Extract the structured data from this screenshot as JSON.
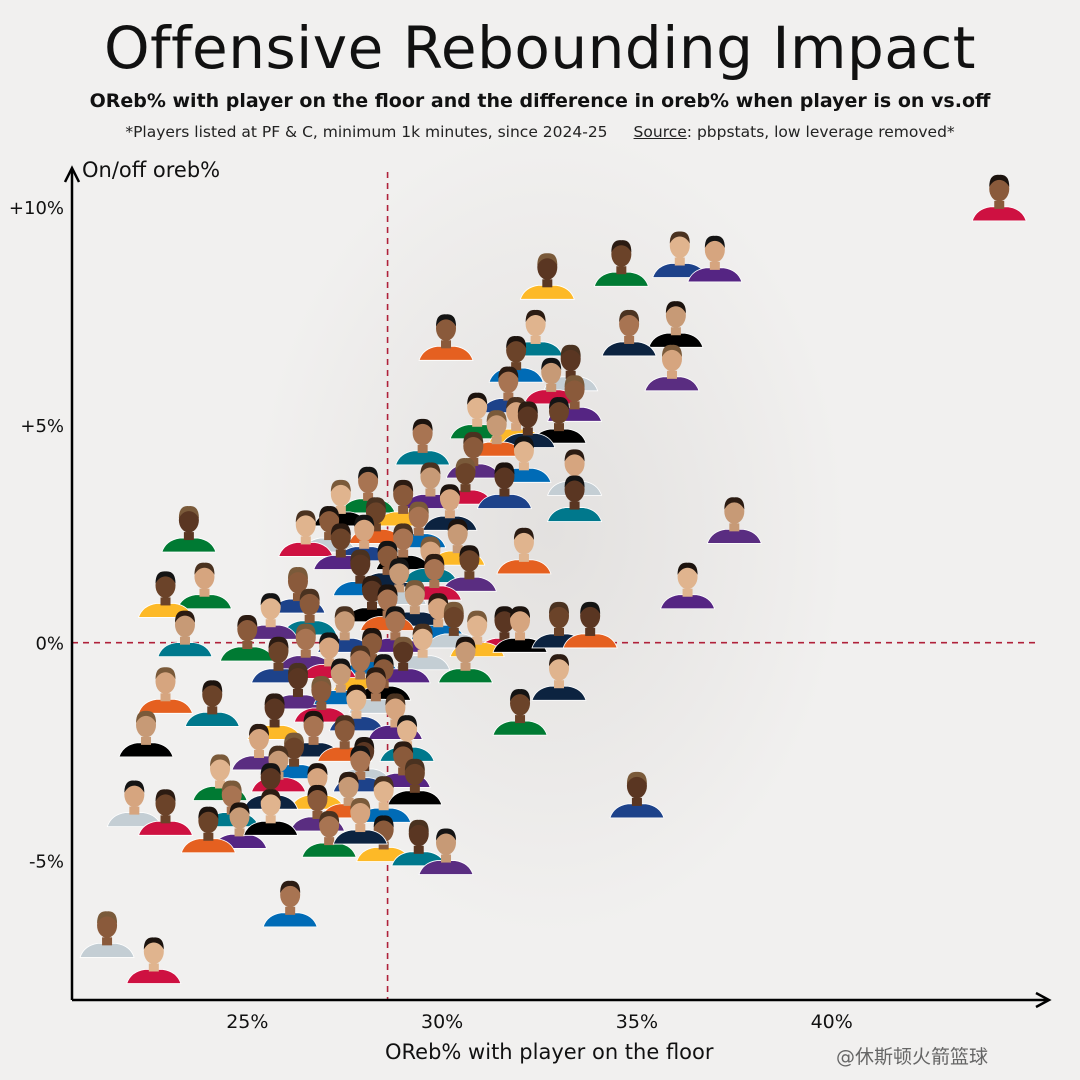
{
  "title": "Offensive Rebounding Impact",
  "subtitle": "OReb% with player on the floor and the difference in oreb% when player is on vs.off",
  "note": "*Players listed at PF & C, minimum 1k minutes, since 2024-25",
  "source_label": "Source",
  "source_text": ": pbpstats, low leverage removed*",
  "watermark": "@休斯顿火箭篮球",
  "chart_data": {
    "type": "scatter",
    "xlabel": "OReb% with player on the floor",
    "ylabel": "On/off oreb%",
    "xlim": [
      20.5,
      45.5
    ],
    "ylim": [
      -8.2,
      10.8
    ],
    "x_ticks": [
      25,
      30,
      35,
      40
    ],
    "x_tick_labels": [
      "25%",
      "30%",
      "35%",
      "40%"
    ],
    "y_ticks": [
      10,
      5,
      0,
      -5
    ],
    "y_tick_labels": [
      "+10%",
      "+5%",
      "0%",
      "-5%"
    ],
    "reference_lines": {
      "x": 28.6,
      "y": 0
    },
    "grid": false,
    "marker": "player headshot",
    "team_colors": [
      "#ce1141",
      "#1d428a",
      "#552583",
      "#007a33",
      "#fdb927",
      "#000000",
      "#0c2340",
      "#e56020",
      "#00788c",
      "#5a2d81",
      "#006bb6",
      "#c4ced4"
    ],
    "points": [
      {
        "x": 44.3,
        "y": 10.0
      },
      {
        "x": 36.1,
        "y": 8.7
      },
      {
        "x": 37.0,
        "y": 8.6
      },
      {
        "x": 34.6,
        "y": 8.5
      },
      {
        "x": 32.7,
        "y": 8.2
      },
      {
        "x": 36.0,
        "y": 7.1
      },
      {
        "x": 34.8,
        "y": 6.9
      },
      {
        "x": 30.1,
        "y": 6.8
      },
      {
        "x": 32.4,
        "y": 6.9
      },
      {
        "x": 35.9,
        "y": 6.1
      },
      {
        "x": 31.9,
        "y": 6.3
      },
      {
        "x": 33.3,
        "y": 6.1
      },
      {
        "x": 32.8,
        "y": 5.8
      },
      {
        "x": 31.7,
        "y": 5.6
      },
      {
        "x": 33.4,
        "y": 5.4
      },
      {
        "x": 30.9,
        "y": 5.0
      },
      {
        "x": 31.9,
        "y": 4.9
      },
      {
        "x": 33.0,
        "y": 4.9
      },
      {
        "x": 32.2,
        "y": 4.8
      },
      {
        "x": 31.4,
        "y": 4.6
      },
      {
        "x": 29.5,
        "y": 4.4
      },
      {
        "x": 30.8,
        "y": 4.1
      },
      {
        "x": 32.1,
        "y": 4.0
      },
      {
        "x": 33.4,
        "y": 3.7
      },
      {
        "x": 30.6,
        "y": 3.5
      },
      {
        "x": 31.6,
        "y": 3.4
      },
      {
        "x": 29.7,
        "y": 3.4
      },
      {
        "x": 28.1,
        "y": 3.3
      },
      {
        "x": 29.0,
        "y": 3.0
      },
      {
        "x": 27.4,
        "y": 3.0
      },
      {
        "x": 30.2,
        "y": 2.9
      },
      {
        "x": 28.3,
        "y": 2.6
      },
      {
        "x": 33.4,
        "y": 3.1
      },
      {
        "x": 37.5,
        "y": 2.6
      },
      {
        "x": 29.4,
        "y": 2.5
      },
      {
        "x": 27.1,
        "y": 2.4
      },
      {
        "x": 26.5,
        "y": 2.3
      },
      {
        "x": 28.0,
        "y": 2.2
      },
      {
        "x": 27.4,
        "y": 2.0
      },
      {
        "x": 23.5,
        "y": 2.4
      },
      {
        "x": 30.4,
        "y": 2.1
      },
      {
        "x": 29.0,
        "y": 2.0
      },
      {
        "x": 28.6,
        "y": 1.6
      },
      {
        "x": 32.1,
        "y": 1.9
      },
      {
        "x": 29.7,
        "y": 1.7
      },
      {
        "x": 30.7,
        "y": 1.5
      },
      {
        "x": 27.9,
        "y": 1.4
      },
      {
        "x": 28.9,
        "y": 1.2
      },
      {
        "x": 29.8,
        "y": 1.3
      },
      {
        "x": 26.3,
        "y": 1.0
      },
      {
        "x": 36.3,
        "y": 1.1
      },
      {
        "x": 23.9,
        "y": 1.1
      },
      {
        "x": 22.9,
        "y": 0.9
      },
      {
        "x": 28.2,
        "y": 0.8
      },
      {
        "x": 29.3,
        "y": 0.7
      },
      {
        "x": 28.6,
        "y": 0.6
      },
      {
        "x": 26.6,
        "y": 0.5
      },
      {
        "x": 25.6,
        "y": 0.4
      },
      {
        "x": 29.9,
        "y": 0.4
      },
      {
        "x": 30.3,
        "y": 0.2
      },
      {
        "x": 31.6,
        "y": 0.1
      },
      {
        "x": 27.5,
        "y": 0.1
      },
      {
        "x": 28.8,
        "y": 0.1
      },
      {
        "x": 25.0,
        "y": -0.1
      },
      {
        "x": 30.9,
        "y": -0.0
      },
      {
        "x": 32.0,
        "y": 0.1
      },
      {
        "x": 33.0,
        "y": 0.2
      },
      {
        "x": 33.8,
        "y": 0.2
      },
      {
        "x": 23.4,
        "y": 0.0
      },
      {
        "x": 26.5,
        "y": -0.3
      },
      {
        "x": 28.2,
        "y": -0.4
      },
      {
        "x": 29.5,
        "y": -0.3
      },
      {
        "x": 27.1,
        "y": -0.5
      },
      {
        "x": 25.8,
        "y": -0.6
      },
      {
        "x": 29.0,
        "y": -0.6
      },
      {
        "x": 30.6,
        "y": -0.6
      },
      {
        "x": 27.9,
        "y": -0.8
      },
      {
        "x": 28.5,
        "y": -1.0
      },
      {
        "x": 33.0,
        "y": -1.0
      },
      {
        "x": 22.9,
        "y": -1.3
      },
      {
        "x": 24.1,
        "y": -1.6
      },
      {
        "x": 26.3,
        "y": -1.2
      },
      {
        "x": 27.4,
        "y": -1.1
      },
      {
        "x": 28.3,
        "y": -1.3
      },
      {
        "x": 26.9,
        "y": -1.5
      },
      {
        "x": 27.8,
        "y": -1.7
      },
      {
        "x": 28.8,
        "y": -1.9
      },
      {
        "x": 32.0,
        "y": -1.8
      },
      {
        "x": 25.7,
        "y": -1.9
      },
      {
        "x": 22.4,
        "y": -2.3
      },
      {
        "x": 26.7,
        "y": -2.3
      },
      {
        "x": 27.5,
        "y": -2.4
      },
      {
        "x": 29.1,
        "y": -2.4
      },
      {
        "x": 25.3,
        "y": -2.6
      },
      {
        "x": 26.2,
        "y": -2.8
      },
      {
        "x": 28.0,
        "y": -2.9
      },
      {
        "x": 25.8,
        "y": -3.1
      },
      {
        "x": 27.9,
        "y": -3.1
      },
      {
        "x": 29.0,
        "y": -3.0
      },
      {
        "x": 24.3,
        "y": -3.3
      },
      {
        "x": 26.8,
        "y": -3.5
      },
      {
        "x": 29.3,
        "y": -3.4
      },
      {
        "x": 25.6,
        "y": -3.5
      },
      {
        "x": 27.6,
        "y": -3.7
      },
      {
        "x": 24.6,
        "y": -3.9
      },
      {
        "x": 26.8,
        "y": -4.0
      },
      {
        "x": 28.5,
        "y": -3.8
      },
      {
        "x": 22.1,
        "y": -3.9
      },
      {
        "x": 22.9,
        "y": -4.1
      },
      {
        "x": 35.0,
        "y": -3.7
      },
      {
        "x": 24.8,
        "y": -4.4
      },
      {
        "x": 27.1,
        "y": -4.6
      },
      {
        "x": 28.5,
        "y": -4.7
      },
      {
        "x": 25.6,
        "y": -4.1
      },
      {
        "x": 27.9,
        "y": -4.3
      },
      {
        "x": 24.0,
        "y": -4.5
      },
      {
        "x": 29.4,
        "y": -4.8
      },
      {
        "x": 30.1,
        "y": -5.0
      },
      {
        "x": 26.1,
        "y": -6.2
      },
      {
        "x": 21.4,
        "y": -6.9
      },
      {
        "x": 22.6,
        "y": -7.5
      }
    ]
  }
}
